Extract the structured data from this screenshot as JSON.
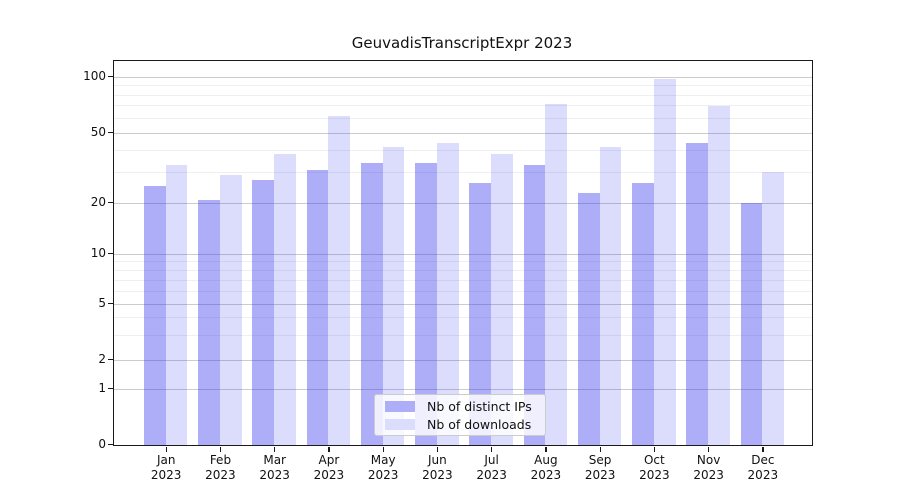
{
  "chart_data": {
    "type": "bar",
    "title": "GeuvadisTranscriptExpr 2023",
    "categories": [
      "Jan 2023",
      "Feb 2023",
      "Mar 2023",
      "Apr 2023",
      "May 2023",
      "Jun 2023",
      "Jul 2023",
      "Aug 2023",
      "Sep 2023",
      "Oct 2023",
      "Nov 2023",
      "Dec 2023"
    ],
    "series": [
      {
        "name": "Nb of distinct IPs",
        "color": "#3232ee",
        "alpha": 0.4,
        "solid_color": "#adadf8",
        "values": [
          25,
          21,
          27,
          31,
          34,
          34,
          26,
          33,
          23,
          26,
          44,
          20
        ]
      },
      {
        "name": "Nb of downloads",
        "color": "#3232ee",
        "alpha": 0.17,
        "solid_color": "#dcdcfc",
        "values": [
          33,
          29,
          38,
          62,
          42,
          44,
          38,
          72,
          42,
          97,
          70,
          30
        ]
      }
    ],
    "xlabel": "",
    "ylabel": "",
    "yscale": "symlog",
    "ylim": [
      0,
      123
    ],
    "y_major_ticks": [
      0,
      1,
      2,
      5,
      10,
      20,
      50,
      100
    ],
    "y_minor_gridlines": [
      3,
      4,
      6,
      7,
      8,
      9,
      30,
      40,
      60,
      70,
      80,
      90
    ],
    "grid": true,
    "legend_position": "lower center"
  },
  "colors": {
    "grid_major": "#cccccc",
    "grid_minor": "#efefef",
    "spine": "#1a1a1a",
    "background": "#ffffff",
    "text": "#111111",
    "legend_border": "#cccccc"
  }
}
